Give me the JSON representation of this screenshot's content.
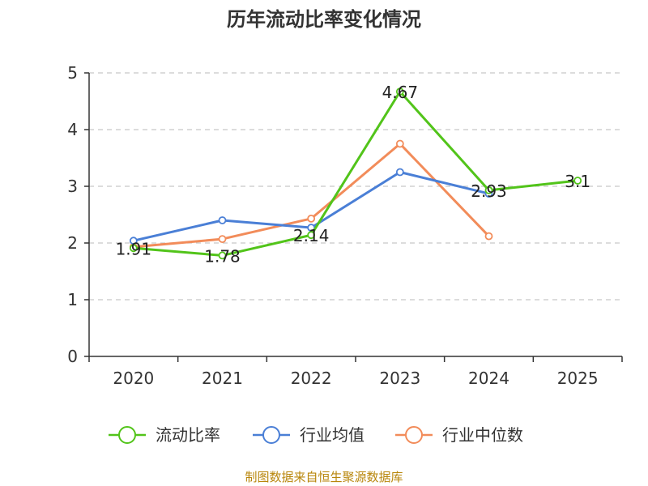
{
  "chart_data": {
    "type": "line",
    "title": "历年流动比率变化情况",
    "categories": [
      "2020",
      "2021",
      "2022",
      "2023",
      "2024",
      "2025"
    ],
    "ylim": [
      0,
      5
    ],
    "yticks": [
      "0",
      "1",
      "2",
      "3",
      "4",
      "5"
    ],
    "grid": true,
    "legend_position": "bottom",
    "series": [
      {
        "name": "流动比率",
        "color": "#52c41a",
        "values": [
          1.91,
          1.78,
          2.14,
          4.67,
          2.93,
          3.1
        ],
        "labels": [
          "1.91",
          "1.78",
          "2.14",
          "4.67",
          "2.93",
          "3.1"
        ]
      },
      {
        "name": "行业均值",
        "color": "#4a7fd6",
        "values": [
          2.04,
          2.4,
          2.27,
          3.25,
          2.87,
          null
        ]
      },
      {
        "name": "行业中位数",
        "color": "#f28c5a",
        "values": [
          1.93,
          2.07,
          2.43,
          3.75,
          2.12,
          null
        ]
      }
    ]
  },
  "footer": {
    "source": "制图数据来自恒生聚源数据库"
  }
}
